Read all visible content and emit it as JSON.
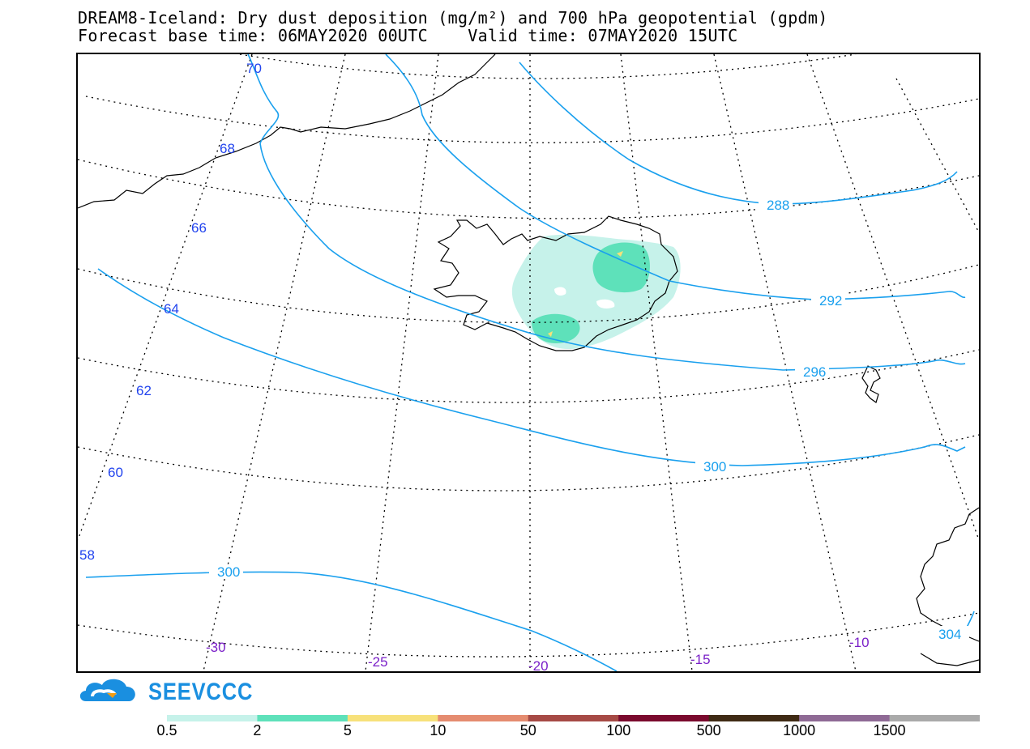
{
  "header": {
    "title_line1": "DREAM8-Iceland: Dry dust deposition (mg/m²) and 700 hPa geopotential (gpdm)",
    "title_line2": "Forecast base time: 06MAY2020 00UTC    Valid time: 07MAY2020 15UTC"
  },
  "map": {
    "latitude_labels": [
      "70",
      "68",
      "66",
      "64",
      "62",
      "60",
      "58"
    ],
    "longitude_labels": [
      "-30",
      "-25",
      "-20",
      "-15",
      "-10"
    ],
    "contour_labels": [
      "288",
      "292",
      "296",
      "300",
      "300",
      "304"
    ],
    "colors": {
      "contour": "#1aa0ee",
      "latitude_label": "#2244ee",
      "longitude_label": "#7a1fc8",
      "coast": "#000000",
      "graticule": "#000000"
    }
  },
  "logo": {
    "text": "SEEVCCC",
    "color": "#1a8fe0"
  },
  "colorbar": {
    "colors": [
      "#c6f2ea",
      "#5ee1ba",
      "#f7e17a",
      "#e58c70",
      "#a64a45",
      "#7a0a2e",
      "#3f2a14",
      "#8f6a95",
      "#aaaaaa"
    ],
    "ticks": [
      "0.5",
      "2",
      "5",
      "10",
      "50",
      "100",
      "500",
      "1000",
      "1500"
    ]
  }
}
